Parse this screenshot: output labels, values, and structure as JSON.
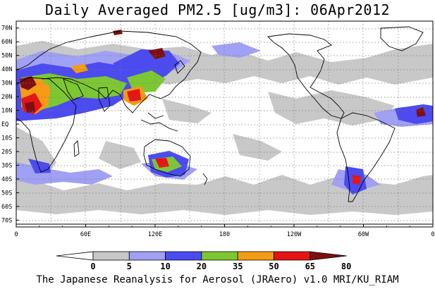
{
  "title": "Daily Averaged PM2.5 [ug/m3]: 06Apr2012",
  "credit": "The Japanese Reanalysis for Aerosol (JRAero) v1.0 MRI/KU_RIAM",
  "map": {
    "projection": "equirectangular",
    "lon_range": [
      0,
      360
    ],
    "lat_range": [
      -75,
      75
    ],
    "gridlines": "dotted",
    "lat_labels": [
      "70N",
      "60N",
      "50N",
      "40N",
      "30N",
      "20N",
      "10N",
      "EQ",
      "10S",
      "20S",
      "30S",
      "40S",
      "50S",
      "60S",
      "70S"
    ],
    "lon_labels": [
      "0",
      "60E",
      "120E",
      "180",
      "120W",
      "60W",
      "0"
    ]
  },
  "colorbar": {
    "boundaries": [
      "0",
      "5",
      "10",
      "20",
      "35",
      "50",
      "65",
      "80"
    ],
    "colors": [
      "#ffffff",
      "#c8c8c8",
      "#a0a0f5",
      "#4b4bf0",
      "#7dc832",
      "#f59b14",
      "#e61414",
      "#7d0f0f"
    ]
  }
}
